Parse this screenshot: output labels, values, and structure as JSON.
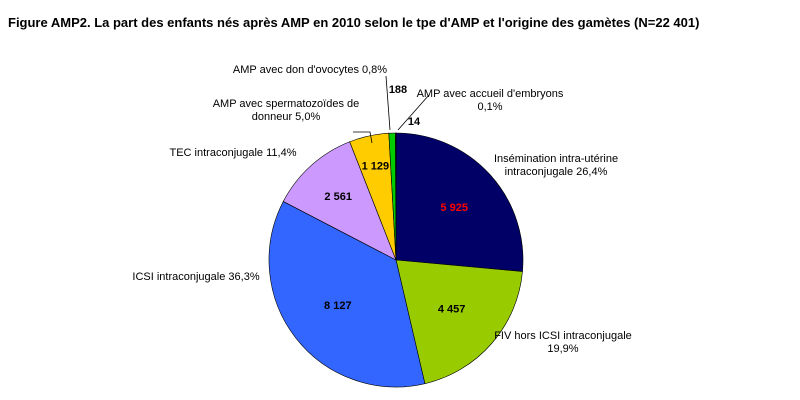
{
  "chart_data": {
    "type": "pie",
    "title": "Figure AMP2. La part des enfants nés après AMP en 2010 selon le tpe d'AMP et l'origine des gamètes (N=22 401)",
    "total": 22401,
    "start_angle_deg": 0,
    "direction": "clockwise",
    "slices": [
      {
        "key": "iiu",
        "value": 5925,
        "value_label": "5 925",
        "label_lines": [
          "Insémination intra-utérine",
          "intraconjugale 26,4%"
        ],
        "color": "#000066",
        "value_color": "#ff0000"
      },
      {
        "key": "fiv",
        "value": 4457,
        "value_label": "4 457",
        "label_lines": [
          "FIV hors ICSI intraconjugale",
          "19,9%"
        ],
        "color": "#99cc00",
        "value_color": "#000000"
      },
      {
        "key": "icsi",
        "value": 8127,
        "value_label": "8 127",
        "label_lines": [
          "ICSI intraconjugale 36,3%"
        ],
        "color": "#3366ff",
        "value_color": "#000000"
      },
      {
        "key": "tec",
        "value": 2561,
        "value_label": "2 561",
        "label_lines": [
          "TEC intraconjugale 11,4%"
        ],
        "color": "#cc99ff",
        "value_color": "#000000"
      },
      {
        "key": "spermatozoides",
        "value": 1129,
        "value_label": "1 129",
        "label_lines": [
          "AMP avec spermatozoïdes de",
          "donneur 5,0%"
        ],
        "color": "#ffcc00",
        "value_color": "#000000"
      },
      {
        "key": "ovocytes",
        "value": 188,
        "value_label": "188",
        "label_lines": [
          "AMP avec don d'ovocytes 0,8%"
        ],
        "color": "#00cc00",
        "value_color": "#000000"
      },
      {
        "key": "embryons",
        "value": 14,
        "value_label": "14",
        "label_lines": [
          "AMP avec accueil d'embryons",
          "0,1%"
        ],
        "color": "#000000",
        "value_color": "#000000"
      }
    ]
  }
}
